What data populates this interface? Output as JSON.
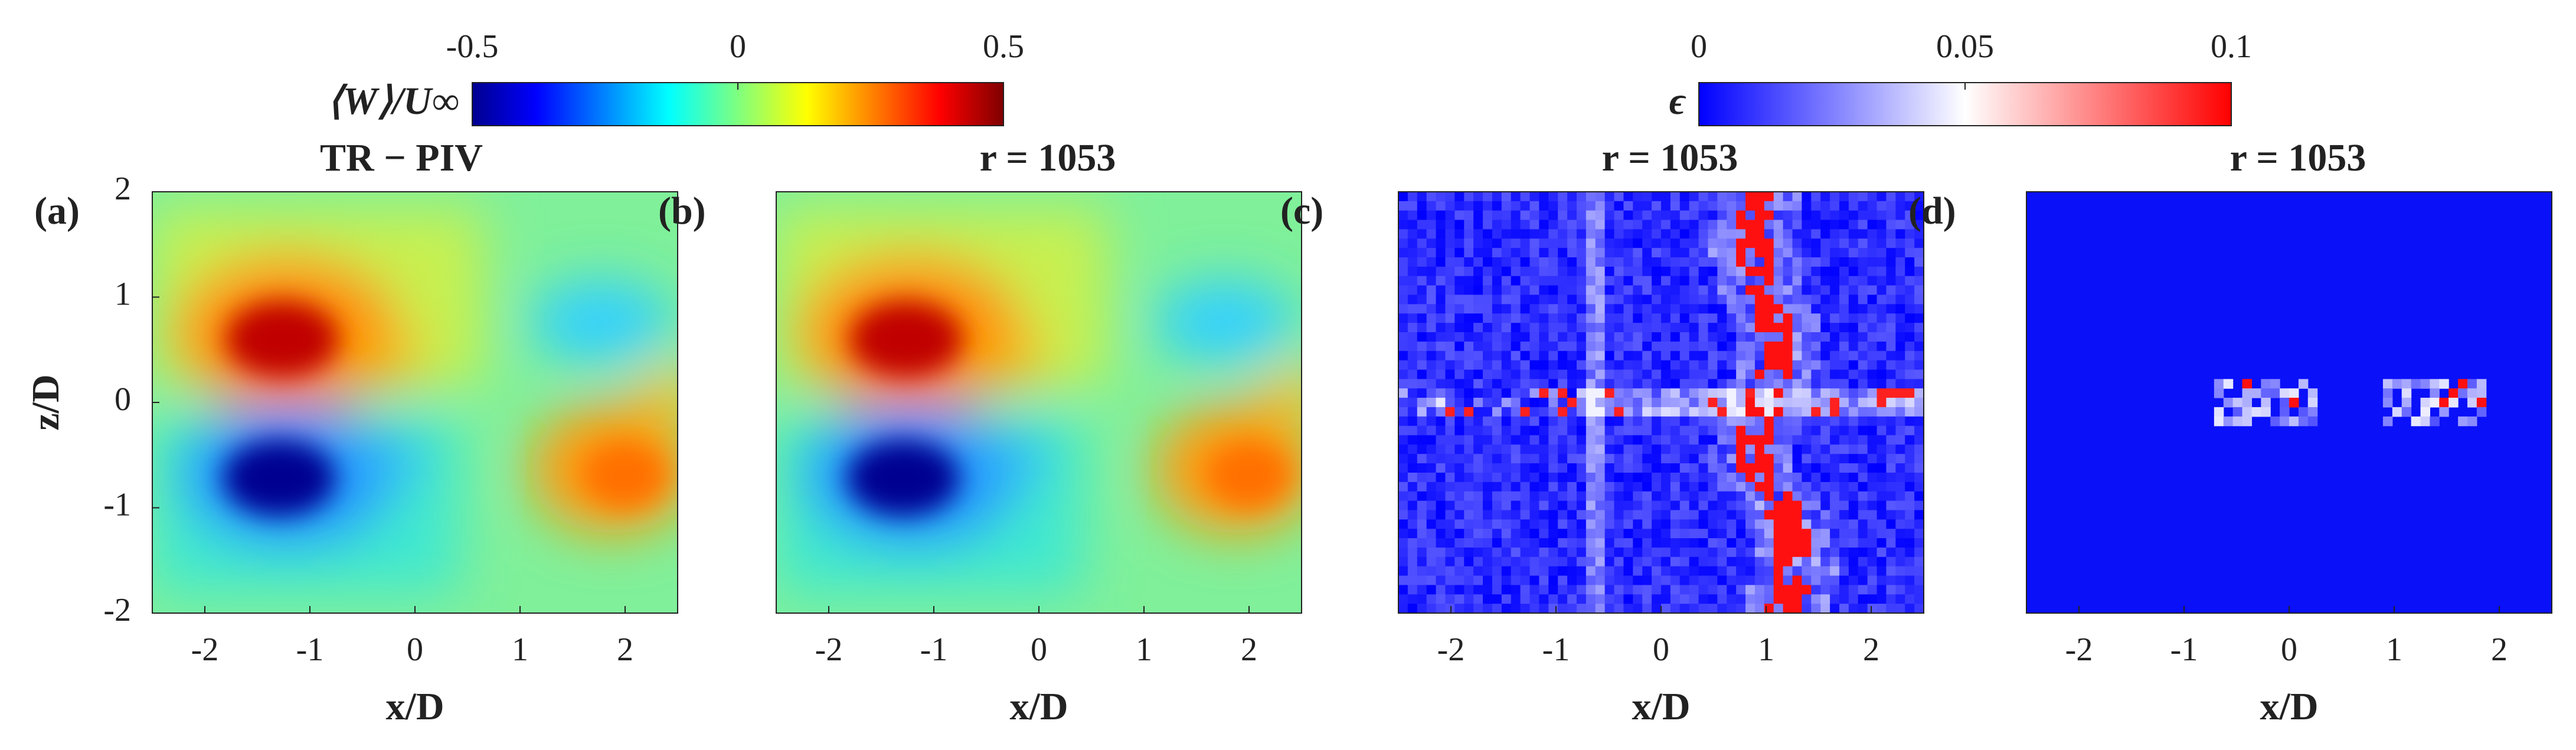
{
  "chart_data": [
    {
      "type": "heatmap",
      "label": "(a)",
      "title": "TR − PIV",
      "xlabel": "x/D",
      "ylabel": "z/D",
      "xlim": [
        -2.5,
        2.5
      ],
      "ylim": [
        -2,
        2
      ],
      "xticks": [
        -2,
        -1,
        0,
        1,
        2
      ],
      "yticks": [
        -2,
        -1,
        0,
        1,
        2
      ],
      "colorbar": {
        "label": "⟨W⟩/U∞",
        "colormap": "jet",
        "lim": [
          -0.5,
          0.5
        ],
        "ticks": [
          -0.5,
          0,
          0.5
        ]
      }
    },
    {
      "type": "heatmap",
      "label": "(b)",
      "title": "r = 1053",
      "xlabel": "x/D",
      "xlim": [
        -2.5,
        2.5
      ],
      "ylim": [
        -2,
        2
      ],
      "xticks": [
        -2,
        -1,
        0,
        1,
        2
      ]
    },
    {
      "type": "heatmap",
      "label": "(c)",
      "title": "r = 1053",
      "xlabel": "x/D",
      "xlim": [
        -2.5,
        2.5
      ],
      "ylim": [
        -2,
        2
      ],
      "xticks": [
        -2,
        -1,
        0,
        1,
        2
      ],
      "colorbar": {
        "label": "ϵ",
        "colormap": "bwr",
        "lim": [
          0,
          0.1
        ],
        "ticks": [
          0,
          0.05,
          0.1
        ]
      }
    },
    {
      "type": "heatmap",
      "label": "(d)",
      "title": "r = 1053",
      "xlabel": "x/D",
      "xlim": [
        -2.5,
        2.5
      ],
      "ylim": [
        -2,
        2
      ],
      "xticks": [
        -2,
        -1,
        0,
        1,
        2
      ]
    }
  ]
}
